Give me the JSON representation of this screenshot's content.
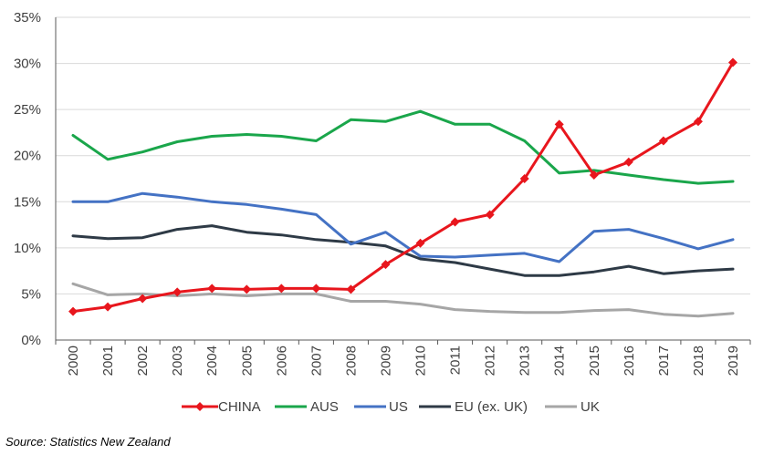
{
  "chart_data": {
    "type": "line",
    "title": "",
    "xlabel": "",
    "ylabel": "",
    "x": [
      "2000",
      "2001",
      "2002",
      "2003",
      "2004",
      "2005",
      "2006",
      "2007",
      "2008",
      "2009",
      "2010",
      "2011",
      "2012",
      "2013",
      "2014",
      "2015",
      "2016",
      "2017",
      "2018",
      "2019"
    ],
    "ylim": [
      0,
      35
    ],
    "yticks": [
      0,
      5,
      10,
      15,
      20,
      25,
      30,
      35
    ],
    "ytick_labels": [
      "0%",
      "5%",
      "10%",
      "15%",
      "20%",
      "25%",
      "30%",
      "35%"
    ],
    "grid": "horizontal",
    "legend_position": "bottom",
    "series": [
      {
        "name": "CHINA",
        "color": "#e8161d",
        "marker": "diamond",
        "values": [
          3.1,
          3.6,
          4.5,
          5.2,
          5.6,
          5.5,
          5.6,
          5.6,
          5.5,
          8.2,
          10.5,
          12.8,
          13.6,
          17.5,
          23.4,
          17.9,
          19.3,
          21.6,
          23.7,
          30.1
        ]
      },
      {
        "name": "AUS",
        "color": "#1aa64b",
        "marker": "none",
        "values": [
          22.2,
          19.6,
          20.4,
          21.5,
          22.1,
          22.3,
          22.1,
          21.6,
          23.9,
          23.7,
          24.8,
          23.4,
          23.4,
          21.6,
          18.1,
          18.4,
          17.9,
          17.4,
          17.0,
          17.2
        ]
      },
      {
        "name": "US",
        "color": "#4472c4",
        "marker": "none",
        "values": [
          15.0,
          15.0,
          15.9,
          15.5,
          15.0,
          14.7,
          14.2,
          13.6,
          10.4,
          11.7,
          9.1,
          9.0,
          9.2,
          9.4,
          8.5,
          11.8,
          12.0,
          11.0,
          9.9,
          10.9
        ]
      },
      {
        "name": "EU (ex. UK)",
        "color": "#2e3a46",
        "marker": "none",
        "values": [
          11.3,
          11.0,
          11.1,
          12.0,
          12.4,
          11.7,
          11.4,
          10.9,
          10.6,
          10.2,
          8.8,
          8.4,
          7.7,
          7.0,
          7.0,
          7.4,
          8.0,
          7.2,
          7.5,
          7.7
        ]
      },
      {
        "name": "UK",
        "color": "#a6a6a6",
        "marker": "none",
        "values": [
          6.1,
          4.9,
          5.0,
          4.8,
          5.0,
          4.8,
          5.0,
          5.0,
          4.2,
          4.2,
          3.9,
          3.3,
          3.1,
          3.0,
          3.0,
          3.2,
          3.3,
          2.8,
          2.6,
          2.9
        ]
      }
    ]
  },
  "source": "Source: Statistics New Zealand"
}
